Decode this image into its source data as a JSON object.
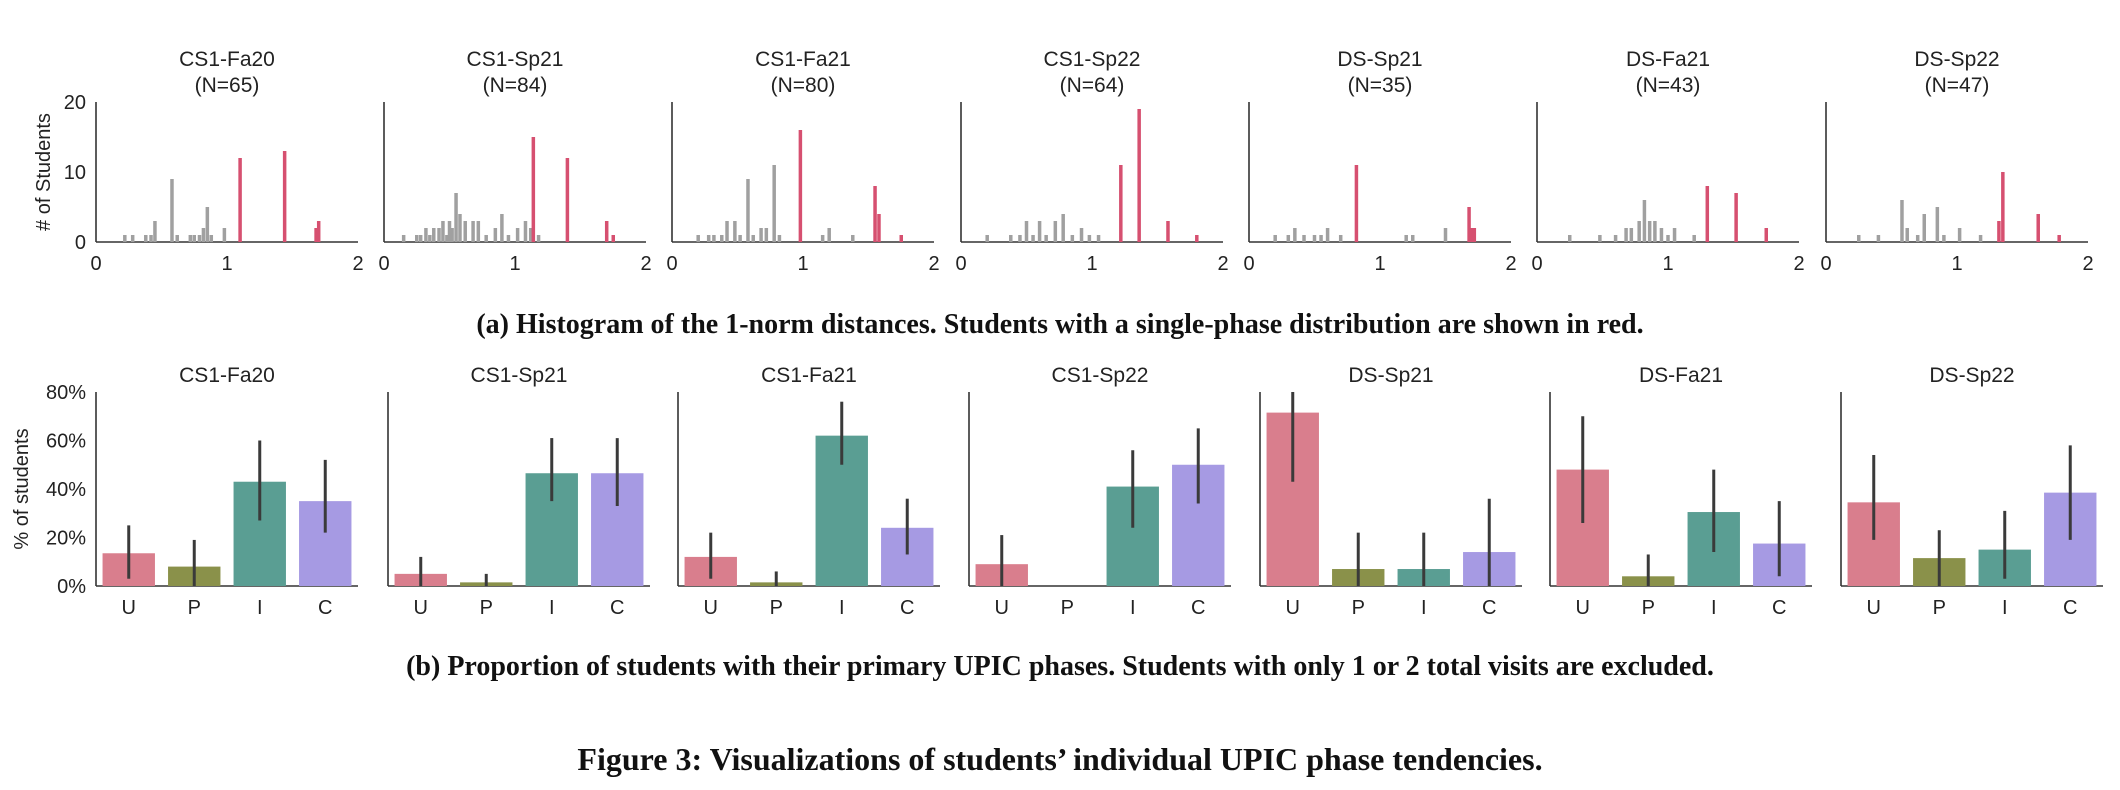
{
  "caption_a": "(a) Histogram of the 1-norm distances. Students with a single-phase distribution are shown in red.",
  "caption_b": "(b) Proportion of students with their primary UPIC phases. Students with only 1 or 2 total visits are excluded.",
  "figure_caption": "Figure 3: Visualizations of students’ individual UPIC phase tendencies.",
  "colors": {
    "multi": "#a0a0a0",
    "single": "#d65070",
    "U": "#d97e8d",
    "P": "#8a914a",
    "I": "#5a9e93",
    "C": "#a69ae3",
    "errorbar": "#3a3a3a"
  },
  "chart_data": [
    {
      "type": "bar",
      "subtype": "histogram",
      "ylabel": "# of Students",
      "xlim": [
        0,
        2
      ],
      "ylim": [
        0,
        20
      ],
      "xticks": [
        "0",
        "1",
        "2"
      ],
      "yticks": [
        "0",
        "10",
        "20"
      ],
      "panels": [
        {
          "title": "CS1-Fa20",
          "n_label": "(N=65)",
          "multi": [
            [
              0.22,
              1
            ],
            [
              0.28,
              1
            ],
            [
              0.38,
              1
            ],
            [
              0.42,
              1
            ],
            [
              0.45,
              3
            ],
            [
              0.58,
              9
            ],
            [
              0.62,
              1
            ],
            [
              0.72,
              1
            ],
            [
              0.75,
              1
            ],
            [
              0.79,
              1
            ],
            [
              0.82,
              2
            ],
            [
              0.85,
              5
            ],
            [
              0.88,
              1
            ],
            [
              0.98,
              2
            ]
          ],
          "single": [
            [
              1.1,
              12
            ],
            [
              1.44,
              13
            ],
            [
              1.68,
              2
            ],
            [
              1.7,
              3
            ]
          ]
        },
        {
          "title": "CS1-Sp21",
          "n_label": "(N=84)",
          "multi": [
            [
              0.15,
              1
            ],
            [
              0.25,
              1
            ],
            [
              0.28,
              1
            ],
            [
              0.32,
              2
            ],
            [
              0.35,
              1
            ],
            [
              0.38,
              2
            ],
            [
              0.42,
              2
            ],
            [
              0.45,
              3
            ],
            [
              0.48,
              1
            ],
            [
              0.5,
              3
            ],
            [
              0.52,
              2
            ],
            [
              0.55,
              7
            ],
            [
              0.58,
              4
            ],
            [
              0.62,
              3
            ],
            [
              0.68,
              3
            ],
            [
              0.72,
              3
            ],
            [
              0.78,
              1
            ],
            [
              0.85,
              2
            ],
            [
              0.9,
              4
            ],
            [
              0.95,
              1
            ],
            [
              1.02,
              2
            ],
            [
              1.08,
              3
            ],
            [
              1.12,
              2
            ],
            [
              1.18,
              1
            ]
          ],
          "single": [
            [
              1.14,
              15
            ],
            [
              1.4,
              12
            ],
            [
              1.7,
              3
            ],
            [
              1.75,
              1
            ]
          ]
        },
        {
          "title": "CS1-Fa21",
          "n_label": "(N=80)",
          "multi": [
            [
              0.2,
              1
            ],
            [
              0.28,
              1
            ],
            [
              0.32,
              1
            ],
            [
              0.38,
              1
            ],
            [
              0.42,
              3
            ],
            [
              0.48,
              3
            ],
            [
              0.52,
              1
            ],
            [
              0.58,
              9
            ],
            [
              0.62,
              1
            ],
            [
              0.68,
              2
            ],
            [
              0.72,
              2
            ],
            [
              0.78,
              11
            ],
            [
              0.82,
              1
            ],
            [
              1.15,
              1
            ],
            [
              1.2,
              2
            ],
            [
              1.38,
              1
            ]
          ],
          "single": [
            [
              0.98,
              16
            ],
            [
              1.55,
              8
            ],
            [
              1.58,
              4
            ],
            [
              1.75,
              1
            ]
          ]
        },
        {
          "title": "CS1-Sp22",
          "n_label": "(N=64)",
          "multi": [
            [
              0.2,
              1
            ],
            [
              0.38,
              1
            ],
            [
              0.45,
              1
            ],
            [
              0.5,
              3
            ],
            [
              0.55,
              1
            ],
            [
              0.6,
              3
            ],
            [
              0.65,
              1
            ],
            [
              0.72,
              3
            ],
            [
              0.78,
              4
            ],
            [
              0.85,
              1
            ],
            [
              0.92,
              2
            ],
            [
              0.98,
              1
            ],
            [
              1.05,
              1
            ]
          ],
          "single": [
            [
              1.22,
              11
            ],
            [
              1.36,
              19
            ],
            [
              1.58,
              3
            ],
            [
              1.8,
              1
            ]
          ]
        },
        {
          "title": "DS-Sp21",
          "n_label": "(N=35)",
          "multi": [
            [
              0.2,
              1
            ],
            [
              0.3,
              1
            ],
            [
              0.35,
              2
            ],
            [
              0.42,
              1
            ],
            [
              0.5,
              1
            ],
            [
              0.55,
              1
            ],
            [
              0.6,
              2
            ],
            [
              0.7,
              1
            ],
            [
              1.2,
              1
            ],
            [
              1.25,
              1
            ],
            [
              1.5,
              2
            ]
          ],
          "single": [
            [
              0.82,
              11
            ],
            [
              1.68,
              5
            ],
            [
              1.7,
              2
            ],
            [
              1.72,
              2
            ]
          ]
        },
        {
          "title": "DS-Fa21",
          "n_label": "(N=43)",
          "multi": [
            [
              0.25,
              1
            ],
            [
              0.48,
              1
            ],
            [
              0.6,
              1
            ],
            [
              0.68,
              2
            ],
            [
              0.72,
              2
            ],
            [
              0.78,
              3
            ],
            [
              0.82,
              6
            ],
            [
              0.86,
              3
            ],
            [
              0.9,
              3
            ],
            [
              0.95,
              2
            ],
            [
              1.0,
              1
            ],
            [
              1.05,
              2
            ],
            [
              1.2,
              1
            ]
          ],
          "single": [
            [
              1.3,
              8
            ],
            [
              1.52,
              7
            ],
            [
              1.75,
              2
            ]
          ]
        },
        {
          "title": "DS-Sp22",
          "n_label": "(N=47)",
          "multi": [
            [
              0.25,
              1
            ],
            [
              0.4,
              1
            ],
            [
              0.58,
              6
            ],
            [
              0.62,
              2
            ],
            [
              0.7,
              1
            ],
            [
              0.75,
              4
            ],
            [
              0.85,
              5
            ],
            [
              0.9,
              1
            ],
            [
              1.02,
              2
            ],
            [
              1.18,
              1
            ]
          ],
          "single": [
            [
              1.32,
              3
            ],
            [
              1.35,
              10
            ],
            [
              1.62,
              4
            ],
            [
              1.78,
              1
            ]
          ]
        }
      ]
    },
    {
      "type": "bar",
      "ylabel": "% of students",
      "categories": [
        "U",
        "P",
        "I",
        "C"
      ],
      "ylim": [
        0,
        80
      ],
      "yticks": [
        "0%",
        "20%",
        "40%",
        "60%",
        "80%"
      ],
      "panels": [
        {
          "title": "CS1-Fa20",
          "values": [
            13.5,
            8,
            43,
            35
          ],
          "err_low": [
            3,
            0,
            27,
            22
          ],
          "err_high": [
            25,
            19,
            60,
            52
          ]
        },
        {
          "title": "CS1-Sp21",
          "values": [
            5,
            1.5,
            46.5,
            46.5
          ],
          "err_low": [
            0,
            0,
            35,
            33
          ],
          "err_high": [
            12,
            5,
            61,
            61
          ]
        },
        {
          "title": "CS1-Fa21",
          "values": [
            12,
            1.5,
            62,
            24
          ],
          "err_low": [
            3,
            0,
            50,
            13
          ],
          "err_high": [
            22,
            6,
            76,
            36
          ]
        },
        {
          "title": "CS1-Sp22",
          "values": [
            9,
            0,
            41,
            50
          ],
          "err_low": [
            0,
            0,
            24,
            34
          ],
          "err_high": [
            21,
            0,
            56,
            65
          ]
        },
        {
          "title": "DS-Sp21",
          "values": [
            71.5,
            7,
            7,
            14
          ],
          "err_low": [
            43,
            0,
            0,
            0
          ],
          "err_high": [
            80,
            22,
            22,
            36
          ]
        },
        {
          "title": "DS-Fa21",
          "values": [
            48,
            4,
            30.5,
            17.5
          ],
          "err_low": [
            26,
            0,
            14,
            4
          ],
          "err_high": [
            70,
            13,
            48,
            35
          ]
        },
        {
          "title": "DS-Sp22",
          "values": [
            34.5,
            11.5,
            15,
            38.5
          ],
          "err_low": [
            19,
            0,
            3,
            19
          ],
          "err_high": [
            54,
            23,
            31,
            58
          ]
        }
      ]
    }
  ]
}
